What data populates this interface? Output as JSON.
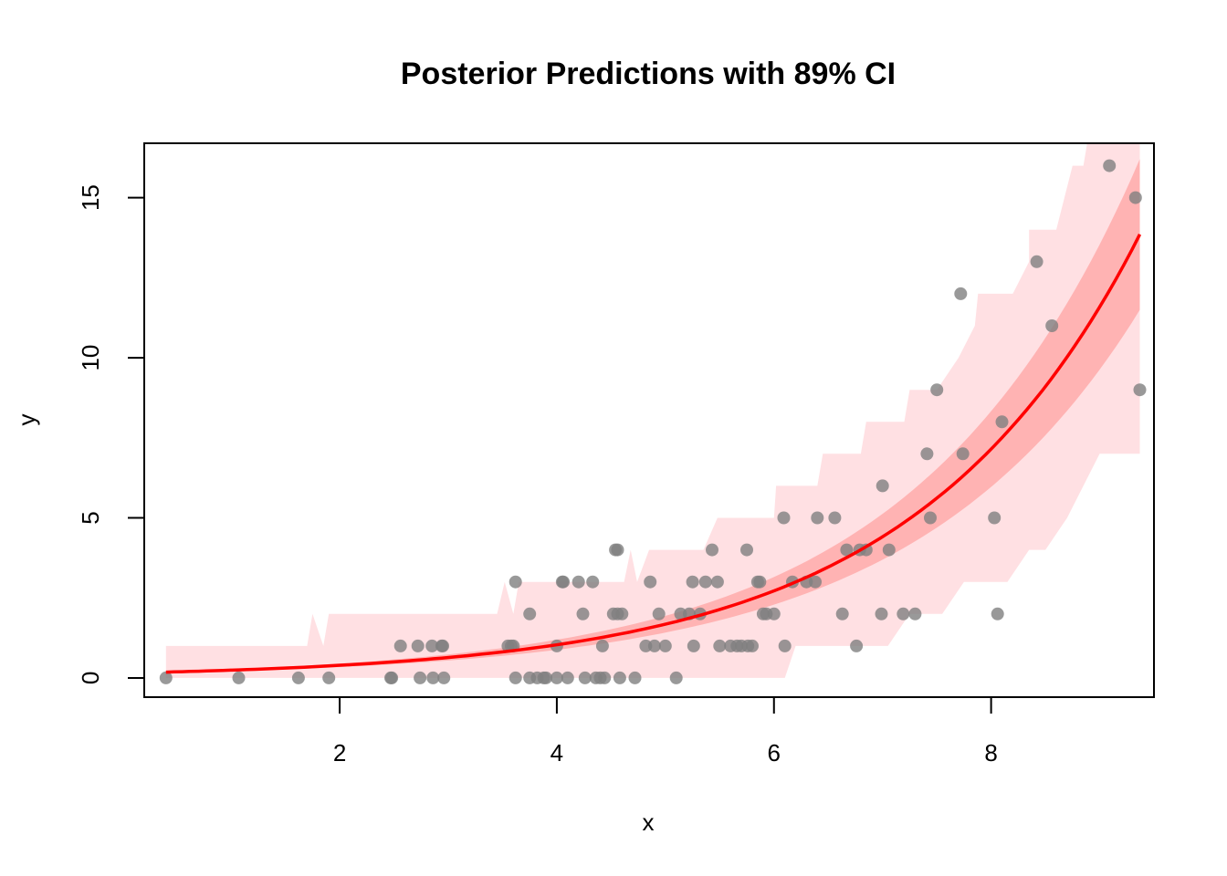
{
  "chart_data": {
    "type": "scatter",
    "title": "Posterior Predictions with 89% CI",
    "xlabel": "x",
    "ylabel": "y",
    "xlim": [
      0.2,
      9.5
    ],
    "ylim": [
      -0.6,
      16.7
    ],
    "x_ticks": [
      2,
      4,
      6,
      8
    ],
    "y_ticks": [
      0,
      5,
      10,
      15
    ],
    "x_tick_labels": [
      "2",
      "4",
      "6",
      "8"
    ],
    "y_tick_labels": [
      "0",
      "5",
      "10",
      "15"
    ],
    "grid": false,
    "legend": "none",
    "colors": {
      "points": "#7f7f7f",
      "line": "#ff0000",
      "mean_band": "#ffb3b3",
      "prediction_band": "#ffe0e3",
      "frame": "#000000"
    },
    "series": [
      {
        "type": "scatter",
        "points": [
          [
            0.4,
            0
          ],
          [
            1.07,
            0
          ],
          [
            1.62,
            0
          ],
          [
            1.9,
            0
          ],
          [
            2.47,
            0
          ],
          [
            2.48,
            0
          ],
          [
            2.56,
            1
          ],
          [
            2.72,
            1
          ],
          [
            2.74,
            0
          ],
          [
            2.85,
            1
          ],
          [
            2.86,
            0
          ],
          [
            2.94,
            1
          ],
          [
            2.95,
            1
          ],
          [
            2.96,
            0
          ],
          [
            3.55,
            1
          ],
          [
            3.58,
            1
          ],
          [
            3.6,
            1
          ],
          [
            3.62,
            3
          ],
          [
            3.62,
            0
          ],
          [
            3.75,
            2
          ],
          [
            3.75,
            0
          ],
          [
            3.82,
            0
          ],
          [
            3.88,
            0
          ],
          [
            3.9,
            0
          ],
          [
            4.0,
            1
          ],
          [
            4.0,
            0
          ],
          [
            4.05,
            3
          ],
          [
            4.06,
            3
          ],
          [
            4.1,
            0
          ],
          [
            4.2,
            3
          ],
          [
            4.24,
            2
          ],
          [
            4.26,
            0
          ],
          [
            4.33,
            3
          ],
          [
            4.36,
            0
          ],
          [
            4.4,
            0
          ],
          [
            4.42,
            1
          ],
          [
            4.44,
            0
          ],
          [
            4.52,
            2
          ],
          [
            4.54,
            4
          ],
          [
            4.56,
            4
          ],
          [
            4.56,
            2
          ],
          [
            4.58,
            0
          ],
          [
            4.6,
            2
          ],
          [
            4.72,
            0
          ],
          [
            4.82,
            1
          ],
          [
            4.86,
            3
          ],
          [
            4.9,
            1
          ],
          [
            4.94,
            2
          ],
          [
            5.0,
            1
          ],
          [
            5.1,
            0
          ],
          [
            5.14,
            2
          ],
          [
            5.22,
            2
          ],
          [
            5.25,
            3
          ],
          [
            5.26,
            1
          ],
          [
            5.32,
            2
          ],
          [
            5.37,
            3
          ],
          [
            5.43,
            4
          ],
          [
            5.48,
            3
          ],
          [
            5.5,
            1
          ],
          [
            5.6,
            1
          ],
          [
            5.66,
            1
          ],
          [
            5.7,
            1
          ],
          [
            5.75,
            4
          ],
          [
            5.76,
            1
          ],
          [
            5.8,
            1
          ],
          [
            5.85,
            3
          ],
          [
            5.87,
            3
          ],
          [
            5.9,
            2
          ],
          [
            5.93,
            2
          ],
          [
            6.0,
            2
          ],
          [
            6.09,
            5
          ],
          [
            6.1,
            1
          ],
          [
            6.17,
            3
          ],
          [
            6.3,
            3
          ],
          [
            6.38,
            3
          ],
          [
            6.4,
            5
          ],
          [
            6.56,
            5
          ],
          [
            6.63,
            2
          ],
          [
            6.67,
            4
          ],
          [
            6.76,
            1
          ],
          [
            6.79,
            4
          ],
          [
            6.85,
            4
          ],
          [
            6.99,
            2
          ],
          [
            7.0,
            6
          ],
          [
            7.06,
            4
          ],
          [
            7.19,
            2
          ],
          [
            7.3,
            2
          ],
          [
            7.41,
            7
          ],
          [
            7.44,
            5
          ],
          [
            7.5,
            9
          ],
          [
            7.72,
            12
          ],
          [
            7.74,
            7
          ],
          [
            8.03,
            5
          ],
          [
            8.06,
            2
          ],
          [
            8.1,
            8
          ],
          [
            8.42,
            13
          ],
          [
            8.56,
            11
          ],
          [
            9.09,
            16
          ],
          [
            9.33,
            15
          ],
          [
            9.37,
            9
          ]
        ]
      },
      {
        "type": "line",
        "name": "",
        "model": "exp",
        "a": 0.15,
        "b": 0.483,
        "x_range": [
          0.4,
          9.37
        ]
      },
      {
        "type": "area",
        "name": "",
        "band_width_rel": [
          0.14,
          0.17
        ]
      },
      {
        "type": "area",
        "name": "",
        "upper_steps": [
          [
            0.4,
            1
          ],
          [
            1.7,
            1
          ],
          [
            1.75,
            2
          ],
          [
            1.85,
            1
          ],
          [
            1.9,
            2
          ],
          [
            3.45,
            2
          ],
          [
            3.52,
            3
          ],
          [
            3.6,
            2
          ],
          [
            3.65,
            3
          ],
          [
            4.62,
            3
          ],
          [
            4.68,
            4
          ],
          [
            4.74,
            3
          ],
          [
            4.85,
            4
          ],
          [
            5.35,
            4
          ],
          [
            5.48,
            5
          ],
          [
            6.0,
            5
          ],
          [
            6.02,
            6
          ],
          [
            6.4,
            6
          ],
          [
            6.45,
            7
          ],
          [
            6.8,
            7
          ],
          [
            6.85,
            8
          ],
          [
            7.2,
            8
          ],
          [
            7.25,
            9
          ],
          [
            7.5,
            9
          ],
          [
            7.7,
            10
          ],
          [
            7.85,
            11
          ],
          [
            7.88,
            12
          ],
          [
            8.2,
            12
          ],
          [
            8.35,
            13
          ],
          [
            8.35,
            14
          ],
          [
            8.6,
            14
          ],
          [
            8.75,
            16
          ],
          [
            8.85,
            16
          ],
          [
            8.9,
            17
          ],
          [
            9.37,
            17
          ]
        ],
        "lower_steps": [
          [
            0.4,
            0
          ],
          [
            6.1,
            0
          ],
          [
            6.2,
            1
          ],
          [
            7.05,
            1
          ],
          [
            7.25,
            2
          ],
          [
            7.55,
            2
          ],
          [
            7.75,
            3
          ],
          [
            8.15,
            3
          ],
          [
            8.35,
            4
          ],
          [
            8.5,
            4
          ],
          [
            8.7,
            5
          ],
          [
            8.85,
            6
          ],
          [
            9.0,
            7
          ],
          [
            9.37,
            7
          ]
        ]
      }
    ]
  }
}
